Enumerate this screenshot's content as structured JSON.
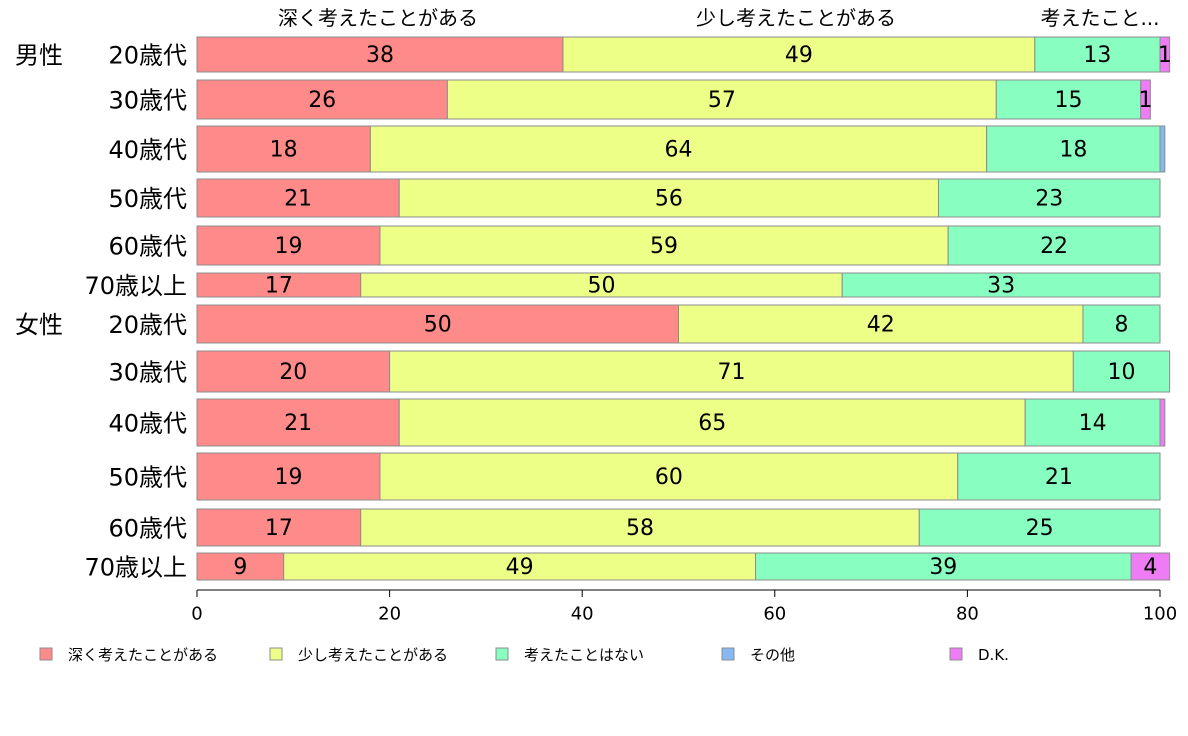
{
  "chart_data": {
    "type": "bar",
    "orientation": "horizontal",
    "stacked": true,
    "xlim": [
      0,
      100
    ],
    "x_ticks": [
      0,
      20,
      40,
      60,
      80,
      100
    ],
    "grid": false,
    "legend_position": "bottom",
    "top_labels": [
      "深く考えたことがある",
      "少し考えたことがある",
      "考えたこと..."
    ],
    "groups": [
      "男性",
      "女性"
    ],
    "categories": [
      "20歳代",
      "30歳代",
      "40歳代",
      "50歳代",
      "60歳代",
      "70歳以上",
      "20歳代",
      "30歳代",
      "40歳代",
      "50歳代",
      "60歳代",
      "70歳以上"
    ],
    "series": [
      {
        "name": "深く考えたことがある",
        "color": "#ff8a8a",
        "values": [
          38,
          26,
          18,
          21,
          19,
          17,
          50,
          20,
          21,
          19,
          17,
          9
        ]
      },
      {
        "name": "少し考えたことがある",
        "color": "#eeff88",
        "values": [
          49,
          57,
          64,
          56,
          59,
          50,
          42,
          71,
          65,
          60,
          58,
          49
        ]
      },
      {
        "name": "考えたことはない",
        "color": "#88ffc0",
        "values": [
          13,
          15,
          18,
          23,
          22,
          33,
          8,
          10,
          14,
          21,
          25,
          39
        ]
      },
      {
        "name": "その他",
        "color": "#88b8f4",
        "values": [
          0,
          0,
          0.5,
          0,
          0,
          0,
          0,
          0,
          0,
          0,
          0,
          0
        ]
      },
      {
        "name": "D.K.",
        "color": "#ee7cf4",
        "values": [
          1,
          1,
          0,
          0,
          0,
          0,
          0,
          0,
          0.5,
          0,
          0,
          4
        ]
      }
    ],
    "labels": [
      [
        "38",
        "49",
        "13",
        "",
        "1"
      ],
      [
        "26",
        "57",
        "15",
        "",
        "1"
      ],
      [
        "18",
        "64",
        "18",
        "",
        ""
      ],
      [
        "21",
        "56",
        "23",
        "",
        ""
      ],
      [
        "19",
        "59",
        "22",
        "",
        ""
      ],
      [
        "17",
        "50",
        "33",
        "",
        ""
      ],
      [
        "50",
        "42",
        "8",
        "",
        ""
      ],
      [
        "20",
        "71",
        "10",
        "",
        ""
      ],
      [
        "21",
        "65",
        "14",
        "",
        ""
      ],
      [
        "19",
        "60",
        "21",
        "",
        ""
      ],
      [
        "17",
        "58",
        "25",
        "",
        ""
      ],
      [
        "9",
        "49",
        "39",
        "",
        "4"
      ]
    ]
  }
}
